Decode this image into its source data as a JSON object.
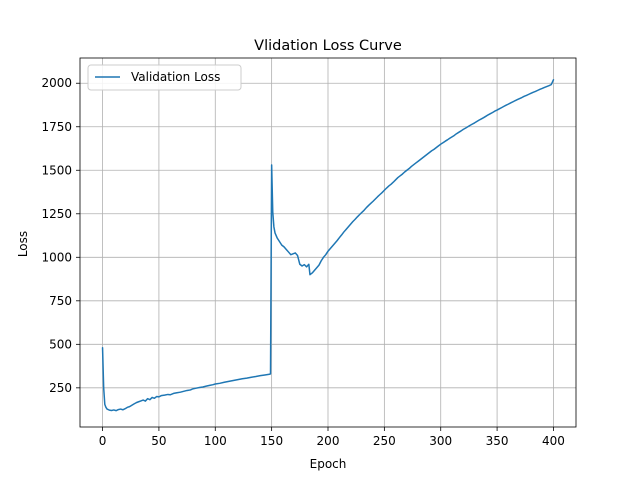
{
  "chart_data": {
    "type": "line",
    "title": "Vlidation Loss Curve",
    "xlabel": "Epoch",
    "ylabel": "Loss",
    "xlim": [
      -20,
      420
    ],
    "ylim": [
      25,
      2145
    ],
    "x_ticks": [
      0,
      50,
      100,
      150,
      200,
      250,
      300,
      350,
      400
    ],
    "y_ticks": [
      250,
      500,
      750,
      1000,
      1250,
      1500,
      1750,
      2000
    ],
    "grid": true,
    "legend_position": "upper-left",
    "series": [
      {
        "name": "Validation Loss",
        "color": "#1f77b4",
        "points": [
          [
            0,
            480
          ],
          [
            1,
            250
          ],
          [
            2,
            155
          ],
          [
            3,
            138
          ],
          [
            4,
            128
          ],
          [
            5,
            125
          ],
          [
            6,
            122
          ],
          [
            8,
            120
          ],
          [
            10,
            123
          ],
          [
            12,
            119
          ],
          [
            14,
            125
          ],
          [
            16,
            128
          ],
          [
            18,
            124
          ],
          [
            20,
            130
          ],
          [
            22,
            138
          ],
          [
            24,
            142
          ],
          [
            26,
            150
          ],
          [
            28,
            158
          ],
          [
            30,
            165
          ],
          [
            32,
            170
          ],
          [
            34,
            175
          ],
          [
            36,
            180
          ],
          [
            38,
            174
          ],
          [
            40,
            188
          ],
          [
            42,
            182
          ],
          [
            44,
            195
          ],
          [
            46,
            190
          ],
          [
            48,
            200
          ],
          [
            50,
            198
          ],
          [
            52,
            205
          ],
          [
            55,
            208
          ],
          [
            58,
            212
          ],
          [
            60,
            210
          ],
          [
            63,
            218
          ],
          [
            66,
            222
          ],
          [
            69,
            225
          ],
          [
            72,
            230
          ],
          [
            75,
            235
          ],
          [
            78,
            238
          ],
          [
            80,
            244
          ],
          [
            83,
            248
          ],
          [
            86,
            252
          ],
          [
            89,
            255
          ],
          [
            92,
            260
          ],
          [
            95,
            264
          ],
          [
            98,
            268
          ],
          [
            100,
            272
          ],
          [
            104,
            276
          ],
          [
            108,
            282
          ],
          [
            112,
            287
          ],
          [
            116,
            292
          ],
          [
            120,
            297
          ],
          [
            124,
            302
          ],
          [
            128,
            306
          ],
          [
            132,
            311
          ],
          [
            136,
            315
          ],
          [
            140,
            320
          ],
          [
            144,
            324
          ],
          [
            148,
            328
          ],
          [
            149,
            330
          ],
          [
            150,
            1530
          ],
          [
            151,
            1260
          ],
          [
            152,
            1175
          ],
          [
            153,
            1140
          ],
          [
            155,
            1110
          ],
          [
            157,
            1090
          ],
          [
            159,
            1070
          ],
          [
            161,
            1060
          ],
          [
            163,
            1045
          ],
          [
            165,
            1030
          ],
          [
            167,
            1015
          ],
          [
            169,
            1020
          ],
          [
            171,
            1025
          ],
          [
            173,
            1010
          ],
          [
            175,
            960
          ],
          [
            177,
            950
          ],
          [
            179,
            958
          ],
          [
            181,
            945
          ],
          [
            183,
            960
          ],
          [
            184,
            900
          ],
          [
            186,
            910
          ],
          [
            188,
            925
          ],
          [
            190,
            940
          ],
          [
            192,
            955
          ],
          [
            194,
            980
          ],
          [
            196,
            1000
          ],
          [
            198,
            1015
          ],
          [
            200,
            1035
          ],
          [
            202,
            1050
          ],
          [
            204,
            1065
          ],
          [
            206,
            1080
          ],
          [
            208,
            1095
          ],
          [
            210,
            1112
          ],
          [
            212,
            1128
          ],
          [
            214,
            1145
          ],
          [
            216,
            1160
          ],
          [
            218,
            1175
          ],
          [
            220,
            1190
          ],
          [
            222,
            1205
          ],
          [
            224,
            1218
          ],
          [
            226,
            1232
          ],
          [
            228,
            1245
          ],
          [
            230,
            1258
          ],
          [
            232,
            1270
          ],
          [
            234,
            1285
          ],
          [
            236,
            1298
          ],
          [
            238,
            1310
          ],
          [
            240,
            1322
          ],
          [
            242,
            1335
          ],
          [
            244,
            1348
          ],
          [
            246,
            1360
          ],
          [
            248,
            1372
          ],
          [
            250,
            1385
          ],
          [
            252,
            1398
          ],
          [
            254,
            1410
          ],
          [
            256,
            1420
          ],
          [
            258,
            1432
          ],
          [
            260,
            1445
          ],
          [
            262,
            1458
          ],
          [
            264,
            1468
          ],
          [
            266,
            1478
          ],
          [
            268,
            1490
          ],
          [
            270,
            1500
          ],
          [
            272,
            1510
          ],
          [
            274,
            1522
          ],
          [
            276,
            1532
          ],
          [
            278,
            1542
          ],
          [
            280,
            1552
          ],
          [
            282,
            1562
          ],
          [
            284,
            1572
          ],
          [
            286,
            1582
          ],
          [
            288,
            1592
          ],
          [
            290,
            1602
          ],
          [
            292,
            1612
          ],
          [
            294,
            1620
          ],
          [
            296,
            1630
          ],
          [
            298,
            1640
          ],
          [
            300,
            1650
          ],
          [
            302,
            1658
          ],
          [
            304,
            1667
          ],
          [
            306,
            1675
          ],
          [
            308,
            1684
          ],
          [
            310,
            1692
          ],
          [
            312,
            1700
          ],
          [
            314,
            1710
          ],
          [
            316,
            1718
          ],
          [
            318,
            1726
          ],
          [
            320,
            1735
          ],
          [
            322,
            1742
          ],
          [
            324,
            1750
          ],
          [
            326,
            1758
          ],
          [
            328,
            1765
          ],
          [
            330,
            1772
          ],
          [
            332,
            1780
          ],
          [
            334,
            1788
          ],
          [
            336,
            1795
          ],
          [
            338,
            1802
          ],
          [
            340,
            1810
          ],
          [
            342,
            1818
          ],
          [
            344,
            1825
          ],
          [
            346,
            1832
          ],
          [
            348,
            1840
          ],
          [
            350,
            1846
          ],
          [
            352,
            1853
          ],
          [
            354,
            1860
          ],
          [
            356,
            1867
          ],
          [
            358,
            1874
          ],
          [
            360,
            1880
          ],
          [
            362,
            1887
          ],
          [
            364,
            1893
          ],
          [
            366,
            1900
          ],
          [
            368,
            1906
          ],
          [
            370,
            1912
          ],
          [
            372,
            1918
          ],
          [
            374,
            1925
          ],
          [
            376,
            1930
          ],
          [
            378,
            1936
          ],
          [
            380,
            1942
          ],
          [
            382,
            1948
          ],
          [
            384,
            1953
          ],
          [
            386,
            1959
          ],
          [
            388,
            1965
          ],
          [
            390,
            1970
          ],
          [
            392,
            1976
          ],
          [
            394,
            1981
          ],
          [
            396,
            1986
          ],
          [
            398,
            1992
          ],
          [
            400,
            2020
          ]
        ]
      }
    ]
  }
}
